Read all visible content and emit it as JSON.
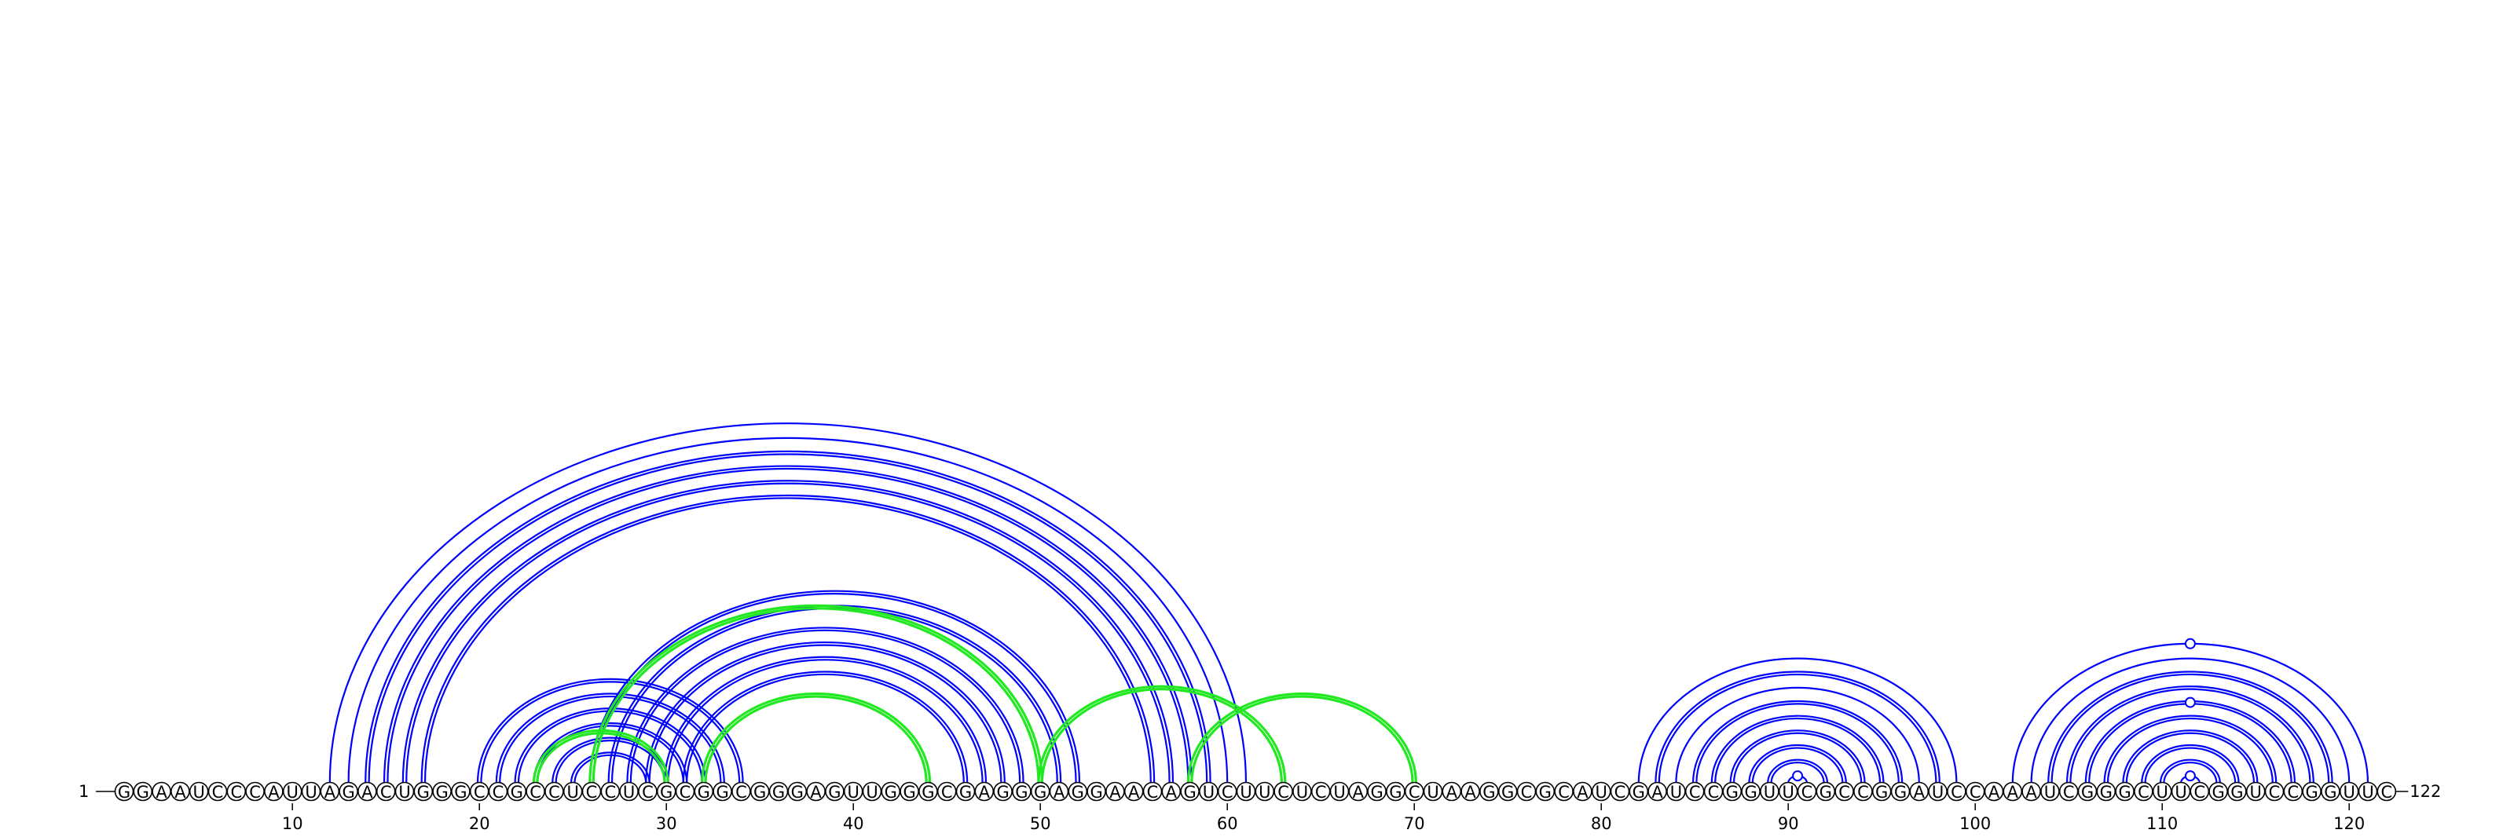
{
  "sequence": "GGAAUCCCAUUAGACUGGGCCGCCUCCUCGCGGCGGGAGUUGGGCGAGGGAGGAACAGUCUUCUCUAGGCUAAGGCGCAUCGAUCCGGUUCGCCGGAUCCAAAUCGGGCUUCGGUCCGGUUC",
  "start_label": "1",
  "end_label": "122",
  "ticks": [
    10,
    20,
    30,
    40,
    50,
    60,
    70,
    80,
    90,
    100,
    110,
    120
  ],
  "colors": {
    "primary": "#0000ff",
    "alternate": "#22e822"
  },
  "arcs": [
    {
      "i": 12,
      "j": 61,
      "style": "single",
      "color": "primary"
    },
    {
      "i": 13,
      "j": 60,
      "style": "single",
      "color": "primary"
    },
    {
      "i": 14,
      "j": 59,
      "style": "double",
      "color": "primary"
    },
    {
      "i": 15,
      "j": 58,
      "style": "double",
      "color": "primary"
    },
    {
      "i": 16,
      "j": 57,
      "style": "double",
      "color": "primary"
    },
    {
      "i": 17,
      "j": 56,
      "style": "double",
      "color": "primary"
    },
    {
      "i": 26,
      "j": 52,
      "style": "double",
      "color": "primary"
    },
    {
      "i": 27,
      "j": 51,
      "style": "double",
      "color": "primary"
    },
    {
      "i": 28,
      "j": 49,
      "style": "double",
      "color": "primary"
    },
    {
      "i": 29,
      "j": 48,
      "style": "double",
      "color": "primary"
    },
    {
      "i": 30,
      "j": 47,
      "style": "double",
      "color": "primary"
    },
    {
      "i": 31,
      "j": 46,
      "style": "double",
      "color": "primary"
    },
    {
      "i": 20,
      "j": 34,
      "style": "double",
      "color": "primary"
    },
    {
      "i": 21,
      "j": 33,
      "style": "double",
      "color": "primary"
    },
    {
      "i": 22,
      "j": 32,
      "style": "double",
      "color": "primary"
    },
    {
      "i": 23,
      "j": 31,
      "style": "double",
      "color": "primary"
    },
    {
      "i": 24,
      "j": 30,
      "style": "double",
      "color": "primary"
    },
    {
      "i": 25,
      "j": 29,
      "style": "double",
      "color": "primary"
    },
    {
      "i": 23,
      "j": 30,
      "style": "double",
      "color": "alternate"
    },
    {
      "i": 26,
      "j": 50,
      "style": "double",
      "color": "alternate"
    },
    {
      "i": 32,
      "j": 44,
      "style": "double",
      "color": "alternate"
    },
    {
      "i": 50,
      "j": 63,
      "style": "double",
      "color": "alternate"
    },
    {
      "i": 58,
      "j": 70,
      "style": "double",
      "color": "alternate"
    },
    {
      "i": 82,
      "j": 99,
      "style": "single",
      "color": "primary"
    },
    {
      "i": 83,
      "j": 98,
      "style": "double",
      "color": "primary"
    },
    {
      "i": 84,
      "j": 97,
      "style": "single",
      "color": "primary"
    },
    {
      "i": 85,
      "j": 96,
      "style": "double",
      "color": "primary"
    },
    {
      "i": 86,
      "j": 95,
      "style": "double",
      "color": "primary"
    },
    {
      "i": 87,
      "j": 94,
      "style": "double",
      "color": "primary"
    },
    {
      "i": 88,
      "j": 93,
      "style": "double",
      "color": "primary"
    },
    {
      "i": 89,
      "j": 92,
      "style": "double",
      "color": "primary"
    },
    {
      "i": 90,
      "j": 91,
      "style": "single",
      "color": "primary",
      "marker": true
    },
    {
      "i": 102,
      "j": 121,
      "style": "single",
      "color": "primary"
    },
    {
      "i": 103,
      "j": 120,
      "style": "single",
      "color": "primary"
    },
    {
      "i": 104,
      "j": 119,
      "style": "double",
      "color": "primary"
    },
    {
      "i": 105,
      "j": 118,
      "style": "double",
      "color": "primary"
    },
    {
      "i": 106,
      "j": 117,
      "style": "double",
      "color": "primary"
    },
    {
      "i": 107,
      "j": 116,
      "style": "double",
      "color": "primary"
    },
    {
      "i": 108,
      "j": 115,
      "style": "double",
      "color": "primary"
    },
    {
      "i": 109,
      "j": 114,
      "style": "double",
      "color": "primary"
    },
    {
      "i": 110,
      "j": 113,
      "style": "double",
      "color": "primary"
    },
    {
      "i": 111,
      "j": 112,
      "style": "single",
      "color": "primary",
      "marker": true
    },
    {
      "i": 106,
      "j": 117,
      "style": "apex",
      "color": "primary",
      "marker": true
    },
    {
      "i": 102,
      "j": 121,
      "style": "apex",
      "color": "primary",
      "marker": true
    }
  ]
}
